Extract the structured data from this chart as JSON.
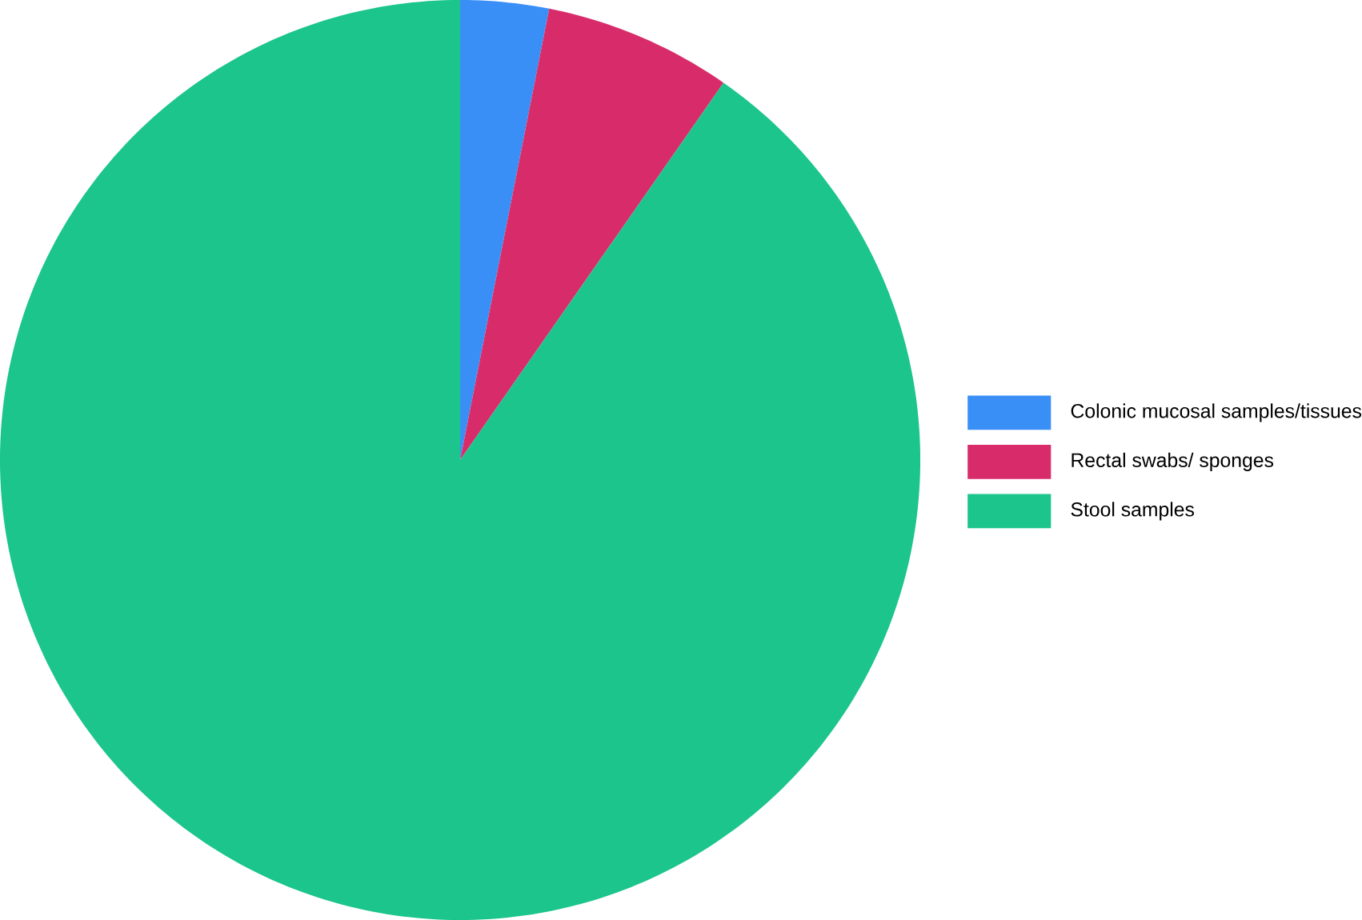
{
  "chart_data": {
    "type": "pie",
    "categories": [
      "Colonic mucosal samples/tissues",
      "Rectal swabs/ sponges",
      "Stool samples"
    ],
    "values": [
      3.1,
      6.6,
      90.3
    ],
    "colors": [
      "#3a8ff7",
      "#d82c6a",
      "#1bc58b"
    ],
    "legend": "right"
  }
}
